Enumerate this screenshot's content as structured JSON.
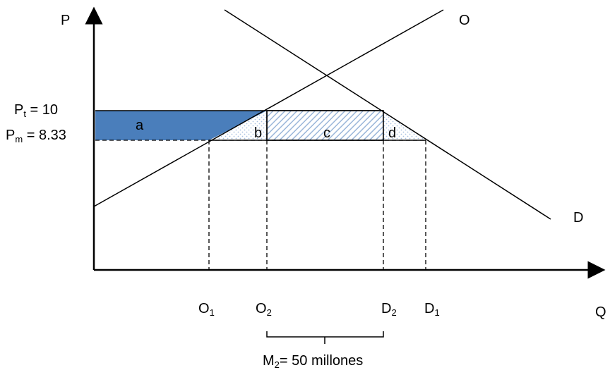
{
  "axes": {
    "y_label": "P",
    "x_label": "Q"
  },
  "curves": {
    "supply_label": "O",
    "demand_label": "D"
  },
  "prices": {
    "pt": {
      "base": "P",
      "sub": "t",
      "tail": " = 10",
      "value": 10
    },
    "pm": {
      "base": "P",
      "sub": "m",
      "tail": " = 8.33",
      "value": 8.33
    }
  },
  "areas": {
    "a": "a",
    "b": "b",
    "c": "c",
    "d": "d"
  },
  "quantities": {
    "o1": {
      "base": "O",
      "sub": "1"
    },
    "o2": {
      "base": "O",
      "sub": "2"
    },
    "d2": {
      "base": "D",
      "sub": "2"
    },
    "d1": {
      "base": "D",
      "sub": "1"
    }
  },
  "imports": {
    "base": "M",
    "sub": "2",
    "tail": "= 50 millones"
  },
  "colors": {
    "area_a": "#4a7ebb",
    "hatch": "#9ab6d9",
    "dots": "#a9c2e2",
    "line": "#000000"
  }
}
